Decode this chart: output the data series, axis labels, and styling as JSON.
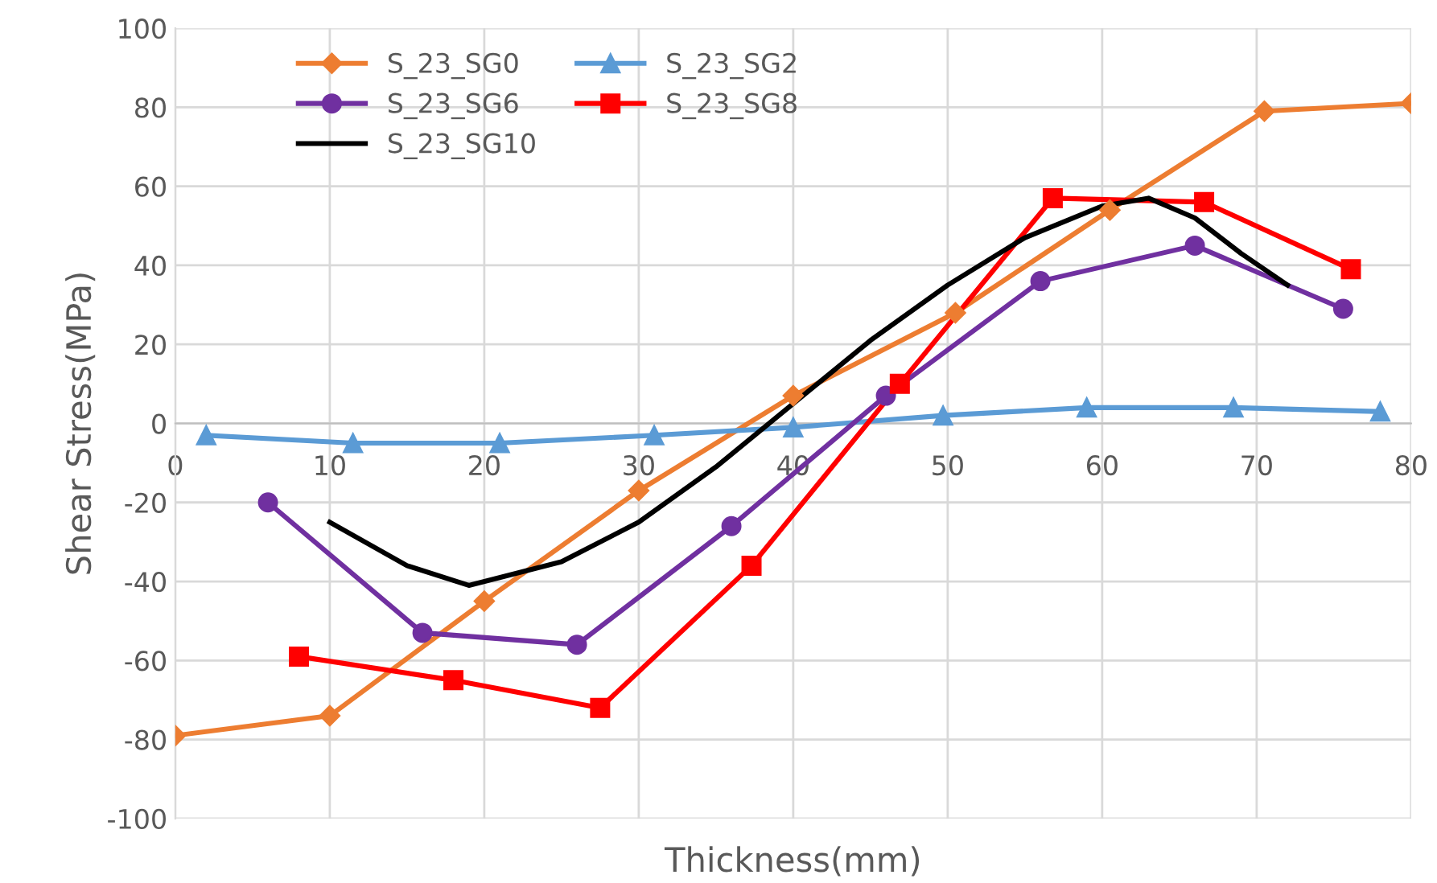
{
  "chart_data": {
    "type": "line",
    "xlabel": "Thickness(mm)",
    "ylabel": "Shear Stress(MPa)",
    "xlim": [
      0,
      80
    ],
    "xticks": [
      0,
      10,
      20,
      30,
      40,
      50,
      60,
      70,
      80
    ],
    "ylim": [
      -100,
      100
    ],
    "yticks": [
      -100,
      -80,
      -60,
      -40,
      -20,
      0,
      20,
      40,
      60,
      80,
      100
    ],
    "grid": true,
    "legend": "top left",
    "series": [
      {
        "name": "S_23_SG0",
        "color": "#ed7d31",
        "marker": "diamond",
        "x": [
          0,
          10,
          20,
          30,
          40,
          50.5,
          60.5,
          70.5,
          80
        ],
        "values": [
          -79,
          -74,
          -45,
          -17,
          7,
          28,
          54,
          79,
          81
        ]
      },
      {
        "name": "S_23_SG2",
        "color": "#5b9bd5",
        "marker": "triangle",
        "x": [
          2,
          11.5,
          21,
          31,
          40,
          49.7,
          59,
          68.5,
          78
        ],
        "values": [
          -3,
          -5,
          -5,
          -3,
          -1,
          2,
          4,
          4,
          3
        ]
      },
      {
        "name": "S_23_SG6",
        "color": "#7030a0",
        "marker": "circle",
        "x": [
          6,
          16,
          26,
          36,
          46,
          56,
          66,
          75.6
        ],
        "values": [
          -20,
          -53,
          -56,
          -26,
          7,
          36,
          45,
          29
        ]
      },
      {
        "name": "S_23_SG8",
        "color": "#ff0000",
        "marker": "square",
        "x": [
          8,
          18,
          27.5,
          37.3,
          46.9,
          56.8,
          66.6,
          76.1
        ],
        "values": [
          -59,
          -65,
          -72,
          -36,
          10,
          57,
          56,
          39
        ]
      },
      {
        "name": "S_23_SG10",
        "color": "#000000",
        "marker": "none",
        "x": [
          10,
          15,
          19,
          25,
          30,
          35,
          40,
          45,
          50,
          55,
          60,
          63,
          66,
          69,
          72
        ],
        "values": [
          -25,
          -36,
          -41,
          -35,
          -25,
          -11,
          5,
          21,
          35,
          47,
          55,
          57,
          52,
          43,
          35
        ]
      }
    ]
  }
}
